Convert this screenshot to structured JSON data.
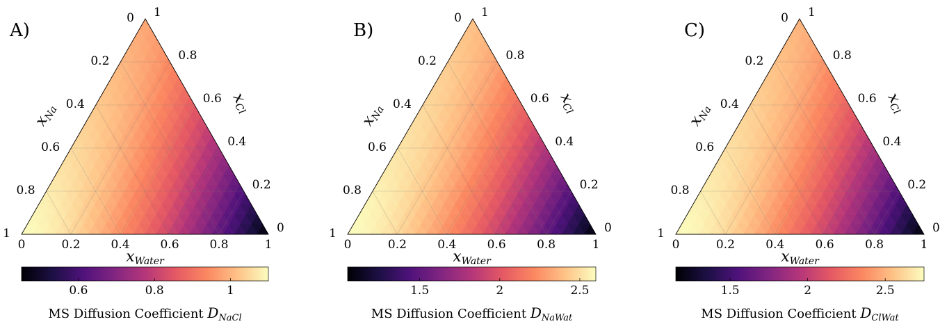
{
  "colormap": [
    "#000004",
    "#1c1044",
    "#4f127b",
    "#812581",
    "#b5367a",
    "#e55964",
    "#fb8761",
    "#fec287",
    "#fcfdbf"
  ],
  "panels": [
    {
      "letter": "A)",
      "chart_data": {
        "type": "heatmap",
        "subtype": "ternary",
        "axes": {
          "bottom": {
            "label_base": "x",
            "label_sub": "Water",
            "ticks": [
              "0",
              "0.2",
              "0.4",
              "0.6",
              "0.8",
              "1"
            ]
          },
          "left": {
            "label_base": "x",
            "label_sub": "Na",
            "ticks": [
              "0",
              "0.2",
              "0.4",
              "0.6",
              "0.8",
              "1"
            ]
          },
          "right": {
            "label_base": "x",
            "label_sub": "Cl",
            "ticks": [
              "0",
              "0.2",
              "0.4",
              "0.6",
              "0.8",
              "1"
            ]
          }
        },
        "value_range": [
          0.45,
          1.1
        ],
        "colorbar": {
          "ticks": [
            0.6,
            0.8,
            1
          ],
          "tick_labels": [
            "0.6",
            "0.8",
            "1"
          ],
          "title_prefix": "MS Diffusion Coefficient ",
          "title_var": "D",
          "title_sub": "NaCl"
        },
        "field": {
          "water_corner": 0.45,
          "na_corner": 1.1,
          "cl_corner": 0.98,
          "shape": 1.6
        },
        "grid": true
      }
    },
    {
      "letter": "B)",
      "chart_data": {
        "type": "heatmap",
        "subtype": "ternary",
        "axes": {
          "bottom": {
            "label_base": "x",
            "label_sub": "Water",
            "ticks": [
              "0",
              "0.2",
              "0.4",
              "0.6",
              "0.8",
              "1"
            ]
          },
          "left": {
            "label_base": "x",
            "label_sub": "Na",
            "ticks": [
              "0",
              "0.2",
              "0.4",
              "0.6",
              "0.8",
              "1"
            ]
          },
          "right": {
            "label_base": "x",
            "label_sub": "Cl",
            "ticks": [
              "0",
              "0.2",
              "0.4",
              "0.6",
              "0.8",
              "1"
            ]
          }
        },
        "value_range": [
          1.05,
          2.6
        ],
        "colorbar": {
          "ticks": [
            1.5,
            2,
            2.5
          ],
          "tick_labels": [
            "1.5",
            "2",
            "2.5"
          ],
          "title_prefix": "MS Diffusion Coefficient ",
          "title_var": "D",
          "title_sub": "NaWat"
        },
        "field": {
          "water_corner": 1.05,
          "na_corner": 2.6,
          "cl_corner": 2.4,
          "shape": 1.6
        },
        "grid": true
      }
    },
    {
      "letter": "C)",
      "chart_data": {
        "type": "heatmap",
        "subtype": "ternary",
        "axes": {
          "bottom": {
            "label_base": "x",
            "label_sub": "Water",
            "ticks": [
              "0",
              "0.2",
              "0.4",
              "0.6",
              "0.8",
              "1"
            ]
          },
          "left": {
            "label_base": "x",
            "label_sub": "Na",
            "ticks": [
              "0",
              "0.2",
              "0.4",
              "0.6",
              "0.8",
              "1"
            ]
          },
          "right": {
            "label_base": "x",
            "label_sub": "Cl",
            "ticks": [
              "0",
              "0.2",
              "0.4",
              "0.6",
              "0.8",
              "1"
            ]
          }
        },
        "value_range": [
          1.15,
          2.75
        ],
        "colorbar": {
          "ticks": [
            1.5,
            2,
            2.5
          ],
          "tick_labels": [
            "1.5",
            "2",
            "2.5"
          ],
          "title_prefix": "MS Diffusion Coefficient ",
          "title_var": "D",
          "title_sub": "ClWat"
        },
        "field": {
          "water_corner": 1.15,
          "na_corner": 2.75,
          "cl_corner": 2.5,
          "shape": 1.6
        },
        "grid": true
      }
    }
  ]
}
